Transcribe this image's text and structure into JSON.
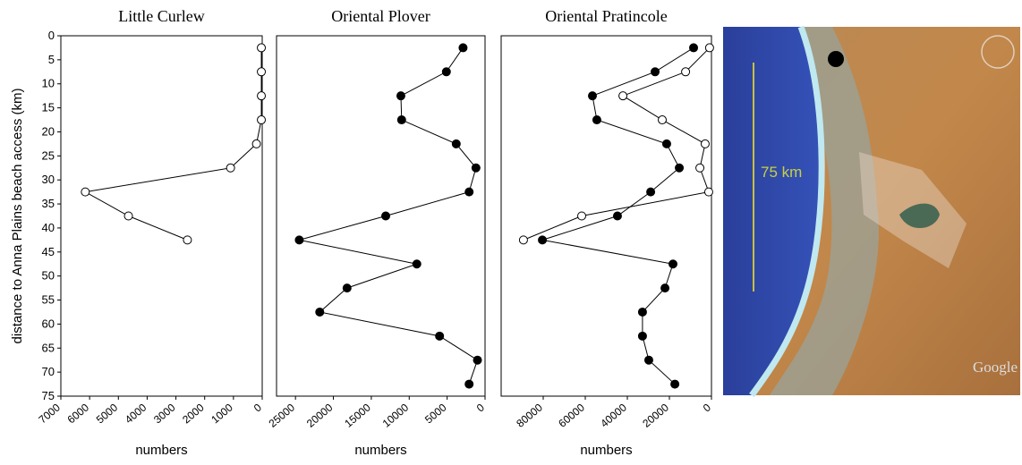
{
  "chart_data": [
    {
      "type": "line",
      "title": "Little Curlew",
      "ylabel": "distance to Anna Plains beach access (km)",
      "xlabel": "numbers",
      "xlim": [
        7000,
        0
      ],
      "xticks": [
        7000,
        6000,
        5000,
        4000,
        3000,
        2000,
        1000,
        0
      ],
      "ylim": [
        0,
        75
      ],
      "yticks": [
        0,
        5,
        10,
        15,
        20,
        25,
        30,
        35,
        40,
        45,
        50,
        55,
        60,
        65,
        70,
        75
      ],
      "series": [
        {
          "color": "#000000",
          "marker": "open",
          "x": [
            30,
            30,
            30,
            30,
            200,
            1100,
            6150,
            4650,
            2600
          ],
          "y": [
            2.5,
            7.5,
            12.5,
            17.5,
            22.5,
            27.5,
            32.5,
            37.5,
            42.5
          ]
        }
      ]
    },
    {
      "type": "line",
      "title": "Oriental Plover",
      "xlabel": "numbers",
      "xlim": [
        27500,
        0
      ],
      "xticks": [
        25000,
        20000,
        15000,
        10000,
        5000,
        0
      ],
      "ylim": [
        0,
        75
      ],
      "series": [
        {
          "color": "#000000",
          "marker": "filled",
          "x": [
            2900,
            5100,
            11100,
            11000,
            3800,
            1200,
            2100,
            13100,
            24500,
            9000,
            18200,
            21800,
            6000,
            1000,
            2100
          ],
          "y": [
            2.5,
            7.5,
            12.5,
            17.5,
            22.5,
            27.5,
            32.5,
            37.5,
            42.5,
            47.5,
            52.5,
            57.5,
            62.5,
            67.5,
            72.5
          ]
        }
      ]
    },
    {
      "type": "line",
      "title": "Oriental Pratincole",
      "xlabel": "numbers",
      "xlim": [
        100000,
        0
      ],
      "xticks": [
        80000,
        60000,
        40000,
        20000,
        0
      ],
      "ylim": [
        0,
        75
      ],
      "series": [
        {
          "color": "#000000",
          "marker": "filled",
          "x": [
            8500,
            26800,
            56600,
            54500,
            21300,
            15300,
            28900,
            44700,
            80400,
            18300,
            22100,
            32800,
            32800,
            29800,
            17400
          ],
          "y": [
            2.5,
            7.5,
            12.5,
            17.5,
            22.5,
            27.5,
            32.5,
            37.5,
            42.5,
            47.5,
            52.5,
            57.5,
            62.5,
            67.5,
            72.5
          ]
        },
        {
          "color": "#000000",
          "marker": "open",
          "x": [
            900,
            12300,
            42100,
            23400,
            3000,
            5500,
            1300,
            61700,
            89400
          ],
          "y": [
            2.5,
            7.5,
            12.5,
            17.5,
            22.5,
            27.5,
            32.5,
            37.5,
            42.5
          ]
        }
      ]
    }
  ],
  "map": {
    "scale_label": "75 km",
    "attribution": "Google"
  }
}
